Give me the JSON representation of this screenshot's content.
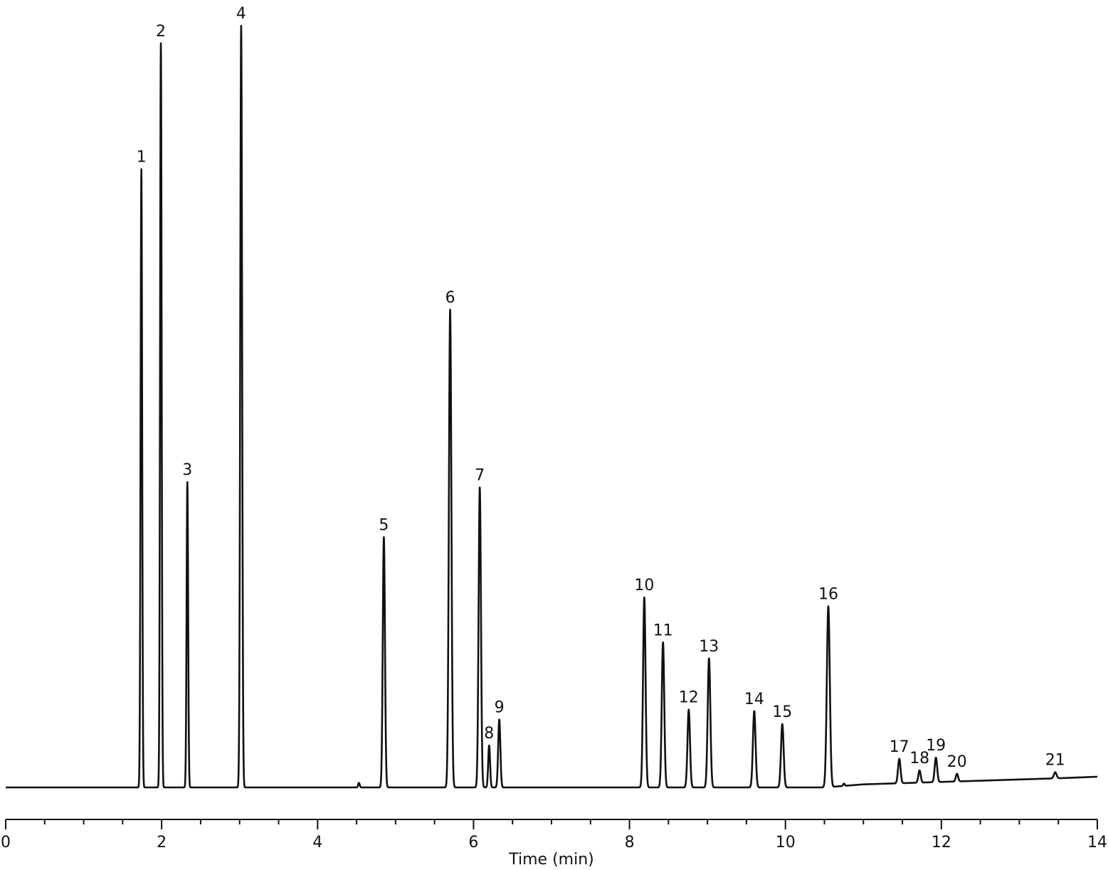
{
  "chart_data": {
    "type": "line",
    "title": "",
    "xlabel": "Time (min)",
    "ylabel": "",
    "xlim": [
      0,
      14
    ],
    "ylim": [
      0,
      100
    ],
    "x_major_ticks": [
      0,
      2,
      4,
      6,
      8,
      10,
      12,
      14
    ],
    "x_tick_labels": [
      "0",
      "2",
      "4",
      "6",
      "8",
      "10",
      "12",
      "14"
    ],
    "x_minor_step": 0.5,
    "grid": false,
    "legend": "none",
    "baseline_drift": [
      {
        "x": 0.0,
        "y": 0.0
      },
      {
        "x": 10.5,
        "y": 0.0
      },
      {
        "x": 11.0,
        "y": 0.4
      },
      {
        "x": 13.5,
        "y": 1.2
      },
      {
        "x": 14.0,
        "y": 1.4
      }
    ],
    "peaks": [
      {
        "label": "1",
        "x": 1.74,
        "y": 81.0,
        "width": 0.01
      },
      {
        "label": "2",
        "x": 1.99,
        "y": 97.5,
        "width": 0.01
      },
      {
        "label": "3",
        "x": 2.33,
        "y": 40.0,
        "width": 0.01
      },
      {
        "label": "4",
        "x": 3.02,
        "y": 99.8,
        "width": 0.012
      },
      {
        "label": "",
        "x": 4.53,
        "y": 0.6,
        "width": 0.01
      },
      {
        "label": "5",
        "x": 4.85,
        "y": 32.8,
        "width": 0.014
      },
      {
        "label": "6",
        "x": 5.7,
        "y": 62.6,
        "width": 0.016
      },
      {
        "label": "7",
        "x": 6.08,
        "y": 39.3,
        "width": 0.015
      },
      {
        "label": "8",
        "x": 6.2,
        "y": 5.5,
        "width": 0.012
      },
      {
        "label": "9",
        "x": 6.33,
        "y": 8.9,
        "width": 0.014
      },
      {
        "label": "10",
        "x": 8.19,
        "y": 24.9,
        "width": 0.016
      },
      {
        "label": "11",
        "x": 8.43,
        "y": 19.0,
        "width": 0.016
      },
      {
        "label": "12",
        "x": 8.76,
        "y": 10.2,
        "width": 0.016
      },
      {
        "label": "13",
        "x": 9.02,
        "y": 16.9,
        "width": 0.017
      },
      {
        "label": "14",
        "x": 9.6,
        "y": 10.0,
        "width": 0.017
      },
      {
        "label": "15",
        "x": 9.96,
        "y": 8.3,
        "width": 0.017
      },
      {
        "label": "16",
        "x": 10.55,
        "y": 23.7,
        "width": 0.019
      },
      {
        "label": "",
        "x": 10.75,
        "y": 0.3,
        "width": 0.01
      },
      {
        "label": "17",
        "x": 11.46,
        "y": 3.2,
        "width": 0.016
      },
      {
        "label": "18",
        "x": 11.72,
        "y": 1.6,
        "width": 0.015
      },
      {
        "label": "19",
        "x": 11.93,
        "y": 3.2,
        "width": 0.016
      },
      {
        "label": "20",
        "x": 12.2,
        "y": 1.0,
        "width": 0.015
      },
      {
        "label": "21",
        "x": 13.46,
        "y": 0.8,
        "width": 0.017
      }
    ]
  }
}
